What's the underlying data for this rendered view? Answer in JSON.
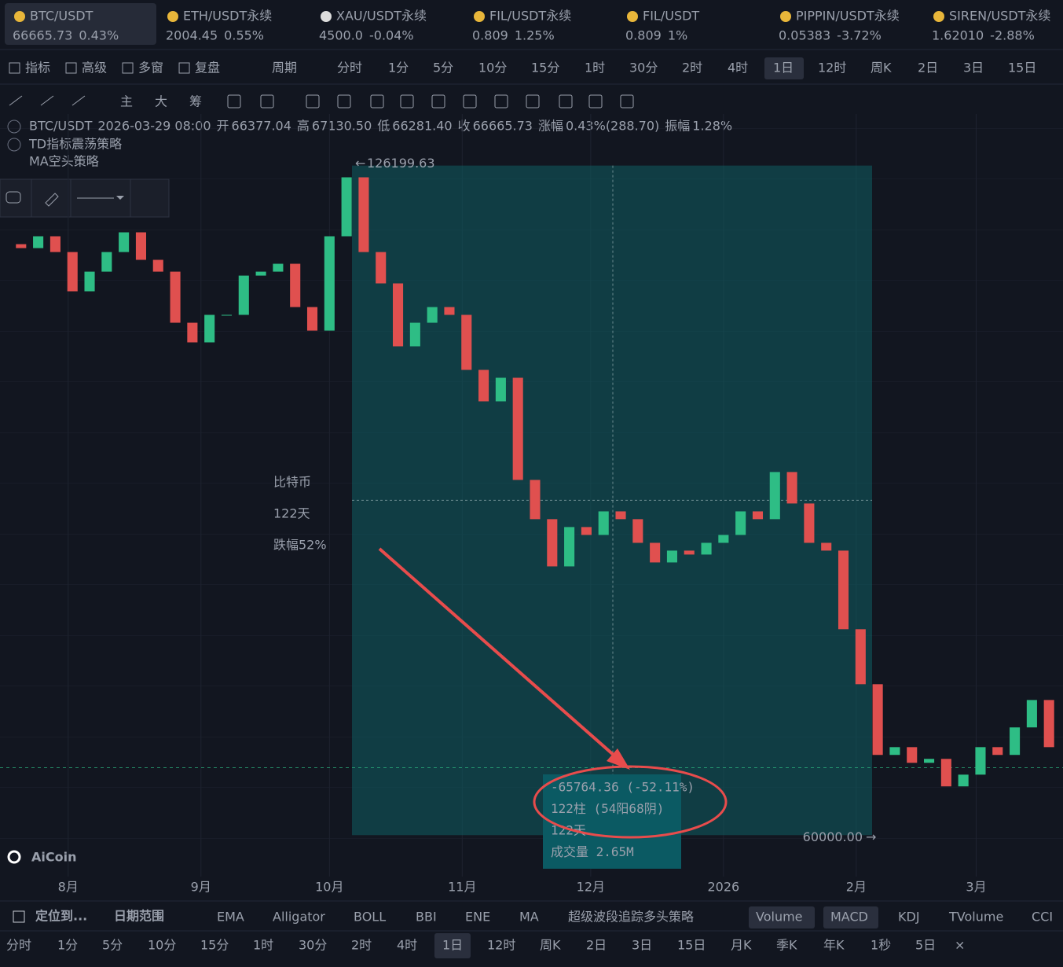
{
  "tickers": [
    {
      "name": "BTC/USDT",
      "price": "66665.73",
      "change": "0.43%",
      "color": "#e6e8ee"
    },
    {
      "name": "ETH/USDT永续",
      "price": "2004.45",
      "change": "0.55%",
      "color": "#2ebd85"
    },
    {
      "name": "XAU/USDT永续",
      "price": "4500.0",
      "change": "-0.04%",
      "color": "#e6e8ee"
    },
    {
      "name": "FIL/USDT永续",
      "price": "0.809",
      "change": "1.25%",
      "color": "#e6e8ee"
    },
    {
      "name": "FIL/USDT",
      "price": "0.809",
      "change": "1%",
      "color": "#2ebd85"
    },
    {
      "name": "PIPPIN/USDT永续",
      "price": "0.05383",
      "change": "-3.72%",
      "color": "#e0504f"
    },
    {
      "name": "SIREN/USDT永续",
      "price": "1.62010",
      "change": "-2.88%",
      "color": "#2ebd85"
    }
  ],
  "toolbar": {
    "tools": [
      "指标",
      "高级",
      "多窗",
      "复盘"
    ],
    "period": "周期",
    "timeframes": [
      "分时",
      "1分",
      "5分",
      "10分",
      "15分",
      "1时",
      "30分",
      "2时",
      "4时",
      "1日",
      "12时",
      "周K",
      "2日",
      "3日",
      "15日"
    ],
    "selected": 9
  },
  "drawing_tools": [
    "主",
    "大",
    "筹"
  ],
  "info": {
    "symbol": "BTC/USDT",
    "datetime": "2026-03-29 08:00",
    "open_label": "开",
    "open": "66377.04",
    "high_label": "高",
    "high": "67130.50",
    "low_label": "低",
    "low": "66281.40",
    "close_label": "收",
    "close": "66665.73",
    "change_label": "涨幅",
    "change": "0.43%(288.70)",
    "amplitude_label": "振幅",
    "amplitude": "1.28%"
  },
  "strategies": [
    "TD指标震荡策略",
    "MA空头策略"
  ],
  "chart_data": {
    "type": "candlestick",
    "x": [
      0,
      4,
      8,
      12,
      16,
      20,
      24,
      28,
      32,
      36,
      40,
      44,
      48,
      52,
      56,
      60,
      64,
      68,
      72,
      76,
      80,
      84,
      88,
      92,
      96,
      100,
      104,
      108,
      112,
      116,
      120,
      124,
      128,
      132,
      136,
      140,
      144,
      148,
      152,
      156,
      160,
      164,
      168,
      172,
      176,
      180,
      184,
      188,
      192,
      196,
      200,
      204,
      208,
      212,
      216,
      220,
      224,
      228,
      232,
      236,
      240,
      244
    ],
    "values": [
      118430,
      118040,
      119210,
      117650,
      113770,
      115710,
      117650,
      119600,
      116880,
      115710,
      110660,
      108720,
      111440,
      111440,
      115320,
      115710,
      116490,
      112210,
      109880,
      119210,
      125040,
      117650,
      114550,
      108330,
      110660,
      112210,
      111440,
      106000,
      102890,
      105220,
      95120,
      91240,
      86570,
      90460,
      89680,
      92010,
      91240,
      88900,
      86960,
      88130,
      87740,
      88900,
      89680,
      92010,
      91240,
      95900,
      92790,
      88900,
      88130,
      80360,
      74920,
      67930,
      68700,
      67150,
      67540,
      64820,
      65980,
      68700,
      67930,
      70650,
      73360,
      68700
    ],
    "xlim": [
      0,
      248
    ],
    "ylim": [
      55900,
      131300
    ],
    "xticks": [
      {
        "value": 15,
        "label": "8月"
      },
      {
        "value": 46,
        "label": "9月"
      },
      {
        "value": 76,
        "label": "10月"
      },
      {
        "value": 107,
        "label": "11月"
      },
      {
        "value": 137,
        "label": "12月"
      },
      {
        "value": 168,
        "label": "2026"
      },
      {
        "value": 199,
        "label": "2月"
      },
      {
        "value": 227,
        "label": "3月"
      }
    ],
    "up_color": "#2ebd85",
    "down_color": "#e0504f",
    "current_price": 66665.73,
    "high_marker": 126199.63,
    "low_marker": {
      "value": 60000,
      "label": "60000.00"
    },
    "measure_color": "#0f5f63",
    "measure": [
      "-65764.36 (-52.11%)",
      "122柱 (54阳68阴)",
      "122天",
      "成交量 2.65M"
    ],
    "annotation": [
      "比特币",
      "122天",
      "跌幅52%"
    ]
  },
  "logo": "AiCoin",
  "indicator_bar": {
    "locate": "定位到...",
    "date_range": "日期范围",
    "indicators": [
      "EMA",
      "Alligator",
      "BOLL",
      "BBI",
      "ENE",
      "MA",
      "超级波段追踪多头策略"
    ],
    "sub_indicators": [
      {
        "label": "Volume",
        "active": true
      },
      {
        "label": "MACD",
        "active": true
      },
      {
        "label": "KDJ",
        "active": false
      },
      {
        "label": "TVolume",
        "active": false
      },
      {
        "label": "CCI",
        "active": false
      }
    ]
  },
  "bottom_timeframes": {
    "items": [
      "分时",
      "1分",
      "5分",
      "10分",
      "15分",
      "1时",
      "30分",
      "2时",
      "4时",
      "1日",
      "12时",
      "周K",
      "2日",
      "3日",
      "15日",
      "月K",
      "季K",
      "年K",
      "1秒",
      "5日"
    ],
    "selected": 9
  }
}
